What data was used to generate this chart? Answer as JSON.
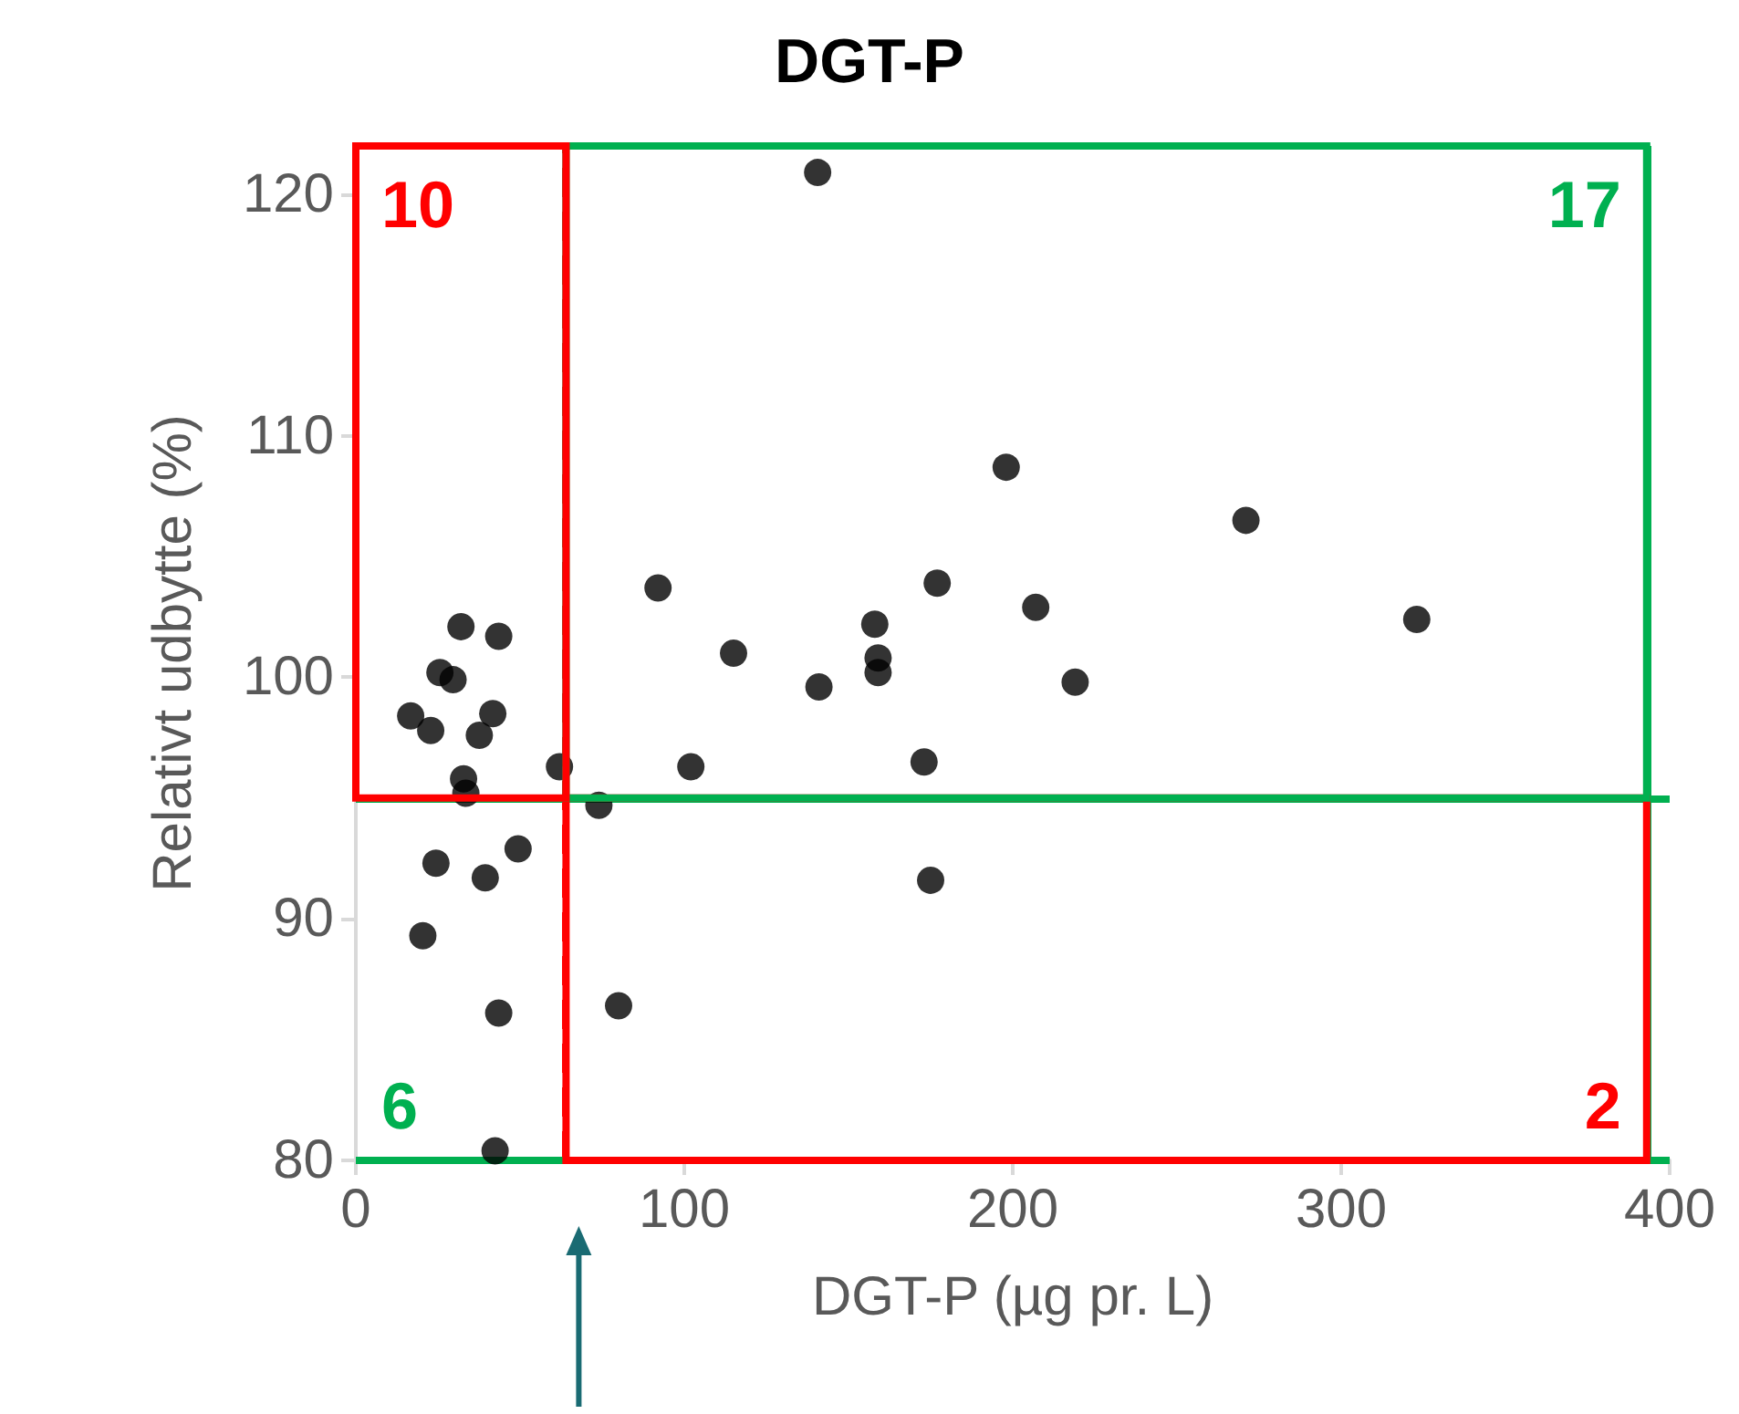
{
  "chart_data": {
    "type": "scatter",
    "title": "DGT-P",
    "xlabel": "DGT-P (µg pr. L)",
    "ylabel": "Relativt udbytte (%)",
    "x": [
      140.6,
      198,
      271,
      92,
      177,
      207,
      158,
      323,
      115,
      159,
      159,
      141,
      219,
      62,
      102,
      173,
      74,
      175,
      80,
      32,
      43.5,
      25.6,
      29.6,
      16.7,
      22.8,
      41.7,
      37.6,
      32.8,
      33.5,
      49.4,
      24.4,
      39.4,
      20.4,
      43.5,
      42.4
    ],
    "values": [
      120.9,
      108.7,
      106.5,
      103.7,
      103.9,
      102.9,
      102.2,
      102.4,
      101,
      100.8,
      100.2,
      99.6,
      99.8,
      96.3,
      96.3,
      96.5,
      94.7,
      91.6,
      86.4,
      102.1,
      101.7,
      100.2,
      99.9,
      98.4,
      97.8,
      98.5,
      97.6,
      95.8,
      95.2,
      92.9,
      92.3,
      91.7,
      89.3,
      86.1,
      80.4
    ],
    "color": "#000000",
    "marker": "circle",
    "xlim": [
      0,
      400
    ],
    "xticks": [
      0,
      100,
      200,
      300,
      400
    ],
    "ylim": [
      80,
      122
    ],
    "yticks": [
      80,
      90,
      100,
      110,
      120
    ],
    "grid": false,
    "ref_lines": [
      {
        "axis": "x",
        "value": 64,
        "color": "#ff0000",
        "line_style": "dashed"
      },
      {
        "axis": "y",
        "value": 95,
        "color": "#00b050",
        "line_style": "solid"
      },
      {
        "axis": "x",
        "value": 393,
        "color": "#00b050",
        "line_style": "solid"
      },
      {
        "axis": "y",
        "value": 80,
        "color": "#00b050",
        "line_style": "solid"
      }
    ],
    "annotations": [
      "10",
      "17",
      "6",
      "2"
    ]
  }
}
